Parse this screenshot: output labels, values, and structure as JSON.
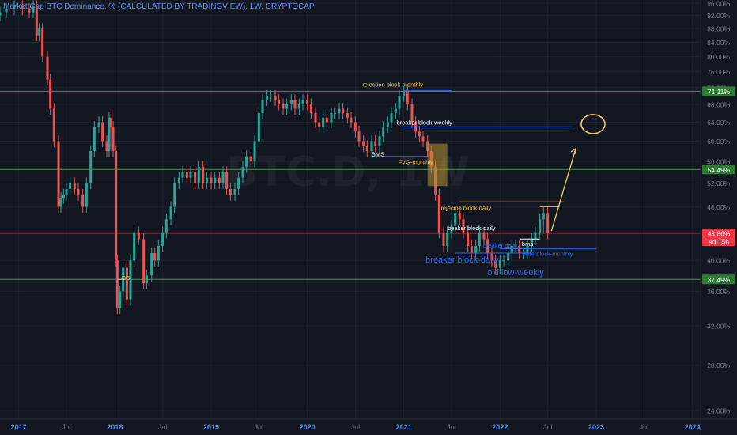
{
  "chart_data": {
    "type": "candlestick",
    "title": "Market Cap BTC Dominance, % (CALCULATED BY TRADINGVIEW), 1W, CRYPTOCAP",
    "watermark": "BTC.D, 1W",
    "y_axis": {
      "scale": "log",
      "ticks": [
        "96.00%",
        "92.00%",
        "88.00%",
        "84.00%",
        "80.00%",
        "76.00%",
        "72.00%",
        "68.00%",
        "64.00%",
        "60.00%",
        "56.00%",
        "52.00%",
        "48.00%",
        "44.00%",
        "40.00%",
        "36.00%",
        "32.00%",
        "28.00%",
        "24.00%"
      ],
      "ylim": [
        23.3,
        97
      ]
    },
    "x_axis": {
      "ticks": [
        "2017",
        "Jul",
        "2018",
        "Jul",
        "2019",
        "Jul",
        "2020",
        "Jul",
        "2021",
        "Jul",
        "2022",
        "Jul",
        "2023",
        "Jul",
        "2024"
      ],
      "xlim": [
        "2016-10-22",
        "2024-02-01"
      ]
    },
    "price_labels": [
      {
        "text": "71.11%",
        "value": 71.11,
        "color": "#2e7d32"
      },
      {
        "text": "54.49%",
        "value": 54.49,
        "color": "#2e7d32"
      },
      {
        "text": "43.86%",
        "value": 43.86,
        "color": "#f23645"
      },
      {
        "text": "4d 15h",
        "value": 43.86,
        "color": "#f23645"
      },
      {
        "text": "37.49%",
        "value": 37.49,
        "color": "#2e7d32"
      }
    ],
    "horizontal_levels": [
      {
        "value": 71.11,
        "color": "#4caf50"
      },
      {
        "value": 54.49,
        "color": "#4caf50"
      },
      {
        "value": 37.49,
        "color": "#4caf50"
      },
      {
        "value": 43.86,
        "color": "#f23645"
      }
    ],
    "annotations": [
      {
        "text": "rejection block-monthly",
        "color": "#f0c75e",
        "x": "2020-11-20",
        "y": 72.2
      },
      {
        "text": "breaker block-weekly",
        "color": "#ffffff",
        "x": "2021-03-20",
        "y": 63.5
      },
      {
        "text": "BMS",
        "color": "#ffffff",
        "x": "2020-09-25",
        "y": 57.0
      },
      {
        "text": "FVG-monthly",
        "color": "#f0c75e",
        "x": "2021-02-15",
        "y": 55.5
      },
      {
        "text": "rejecion block-daily",
        "color": "#f0c75e",
        "x": "2021-08-25",
        "y": 47.5
      },
      {
        "text": "beaker block-daily",
        "color": "#ffffff",
        "x": "2021-09-15",
        "y": 44.3
      },
      {
        "text": "bms",
        "color": "#ffffff",
        "x": "2022-04-15",
        "y": 42.0
      },
      {
        "text": "breaker daily",
        "color": "#2962ff",
        "x": "2022-01-01",
        "y": 41.8
      },
      {
        "text": "orderblock-monthly",
        "color": "#2962ff",
        "x": "2022-07-01",
        "y": 40.6
      },
      {
        "text": "breaker block-daily",
        "color": "#2962ff",
        "x": "2021-08-10",
        "y": 39.7
      },
      {
        "text": "old low-weekly",
        "color": "#2962ff",
        "x": "2022-03-01",
        "y": 38.0
      },
      {
        "text": "OB",
        "color": "#f0c75e",
        "x": "2018-02-10",
        "y": 37.4
      }
    ],
    "series": [
      {
        "type": "candles",
        "color_up": "#26a69a",
        "color_down": "#ef5350",
        "points": [
          [
            "2016-10-22",
            93
          ],
          [
            "2016-11-15",
            94
          ],
          [
            "2016-12-15",
            95
          ],
          [
            "2017-01-15",
            94
          ],
          [
            "2017-02-10",
            93
          ],
          [
            "2017-02-25",
            95
          ],
          [
            "2017-03-10",
            86
          ],
          [
            "2017-03-20",
            88
          ],
          [
            "2017-04-01",
            80
          ],
          [
            "2017-04-20",
            74
          ],
          [
            "2017-05-01",
            67
          ],
          [
            "2017-05-15",
            60
          ],
          [
            "2017-06-01",
            48
          ],
          [
            "2017-06-10",
            49.5
          ],
          [
            "2017-06-20",
            50
          ],
          [
            "2017-07-01",
            51
          ],
          [
            "2017-07-15",
            52
          ],
          [
            "2017-08-01",
            51
          ],
          [
            "2017-08-15",
            50
          ],
          [
            "2017-09-01",
            48
          ],
          [
            "2017-09-15",
            52
          ],
          [
            "2017-10-01",
            58
          ],
          [
            "2017-10-15",
            63
          ],
          [
            "2017-11-01",
            64
          ],
          [
            "2017-11-15",
            60
          ],
          [
            "2017-12-01",
            58
          ],
          [
            "2017-12-10",
            65
          ],
          [
            "2017-12-17",
            63
          ],
          [
            "2017-12-25",
            58
          ],
          [
            "2018-01-05",
            40
          ],
          [
            "2018-01-10",
            34
          ],
          [
            "2018-01-20",
            36
          ],
          [
            "2018-02-01",
            39
          ],
          [
            "2018-02-15",
            35
          ],
          [
            "2018-03-01",
            40
          ],
          [
            "2018-03-15",
            44
          ],
          [
            "2018-04-01",
            43
          ],
          [
            "2018-04-20",
            37
          ],
          [
            "2018-05-01",
            38
          ],
          [
            "2018-05-20",
            41
          ],
          [
            "2018-06-01",
            40
          ],
          [
            "2018-06-15",
            42
          ],
          [
            "2018-07-01",
            44
          ],
          [
            "2018-07-15",
            46
          ],
          [
            "2018-08-01",
            48
          ],
          [
            "2018-08-15",
            52
          ],
          [
            "2018-09-01",
            53
          ],
          [
            "2018-09-15",
            54
          ],
          [
            "2018-10-01",
            53
          ],
          [
            "2018-10-15",
            54
          ],
          [
            "2018-11-01",
            52
          ],
          [
            "2018-11-15",
            55
          ],
          [
            "2018-12-01",
            52
          ],
          [
            "2018-12-15",
            53
          ],
          [
            "2019-01-01",
            52
          ],
          [
            "2019-01-15",
            53
          ],
          [
            "2019-02-01",
            52
          ],
          [
            "2019-02-15",
            54
          ],
          [
            "2019-03-01",
            51
          ],
          [
            "2019-03-15",
            50
          ],
          [
            "2019-04-01",
            51
          ],
          [
            "2019-04-15",
            53
          ],
          [
            "2019-05-01",
            55
          ],
          [
            "2019-05-15",
            57
          ],
          [
            "2019-06-01",
            56
          ],
          [
            "2019-06-15",
            60
          ],
          [
            "2019-07-01",
            66
          ],
          [
            "2019-07-15",
            69
          ],
          [
            "2019-08-01",
            70
          ],
          [
            "2019-08-15",
            70
          ],
          [
            "2019-09-01",
            69
          ],
          [
            "2019-09-15",
            68
          ],
          [
            "2019-10-01",
            67
          ],
          [
            "2019-10-15",
            68
          ],
          [
            "2019-11-01",
            69
          ],
          [
            "2019-11-15",
            67
          ],
          [
            "2019-12-01",
            68
          ],
          [
            "2019-12-15",
            69
          ],
          [
            "2020-01-01",
            68
          ],
          [
            "2020-01-15",
            66
          ],
          [
            "2020-02-01",
            64
          ],
          [
            "2020-02-15",
            63
          ],
          [
            "2020-03-01",
            65
          ],
          [
            "2020-03-15",
            64
          ],
          [
            "2020-04-01",
            66
          ],
          [
            "2020-04-15",
            66
          ],
          [
            "2020-05-01",
            67
          ],
          [
            "2020-05-15",
            66
          ],
          [
            "2020-06-01",
            65
          ],
          [
            "2020-06-15",
            64
          ],
          [
            "2020-07-01",
            62
          ],
          [
            "2020-07-15",
            60
          ],
          [
            "2020-08-01",
            59
          ],
          [
            "2020-08-15",
            58
          ],
          [
            "2020-09-01",
            60
          ],
          [
            "2020-09-15",
            59
          ],
          [
            "2020-10-01",
            61
          ],
          [
            "2020-10-15",
            63
          ],
          [
            "2020-11-01",
            64
          ],
          [
            "2020-11-15",
            66
          ],
          [
            "2020-12-01",
            67
          ],
          [
            "2020-12-15",
            70
          ],
          [
            "2021-01-01",
            71
          ],
          [
            "2021-01-15",
            68
          ],
          [
            "2021-02-01",
            64
          ],
          [
            "2021-02-15",
            62
          ],
          [
            "2021-03-01",
            61
          ],
          [
            "2021-03-15",
            60
          ],
          [
            "2021-04-01",
            58
          ],
          [
            "2021-04-15",
            55
          ],
          [
            "2021-05-01",
            50
          ],
          [
            "2021-05-15",
            44
          ],
          [
            "2021-06-01",
            42
          ],
          [
            "2021-06-15",
            44
          ],
          [
            "2021-07-01",
            45
          ],
          [
            "2021-07-15",
            47
          ],
          [
            "2021-08-01",
            46
          ],
          [
            "2021-08-15",
            44
          ],
          [
            "2021-09-01",
            42
          ],
          [
            "2021-09-15",
            41
          ],
          [
            "2021-10-01",
            42
          ],
          [
            "2021-10-15",
            44
          ],
          [
            "2021-11-01",
            43
          ],
          [
            "2021-11-15",
            41
          ],
          [
            "2021-12-01",
            40
          ],
          [
            "2021-12-15",
            39
          ],
          [
            "2022-01-01",
            40
          ],
          [
            "2022-01-15",
            40
          ],
          [
            "2022-02-01",
            41
          ],
          [
            "2022-02-15",
            42
          ],
          [
            "2022-03-01",
            42
          ],
          [
            "2022-03-15",
            41
          ],
          [
            "2022-04-01",
            41
          ],
          [
            "2022-04-15",
            42
          ],
          [
            "2022-05-01",
            43
          ],
          [
            "2022-05-15",
            44
          ],
          [
            "2022-06-01",
            46
          ],
          [
            "2022-06-15",
            47
          ],
          [
            "2022-07-01",
            43.86
          ]
        ]
      }
    ],
    "grid": true
  }
}
